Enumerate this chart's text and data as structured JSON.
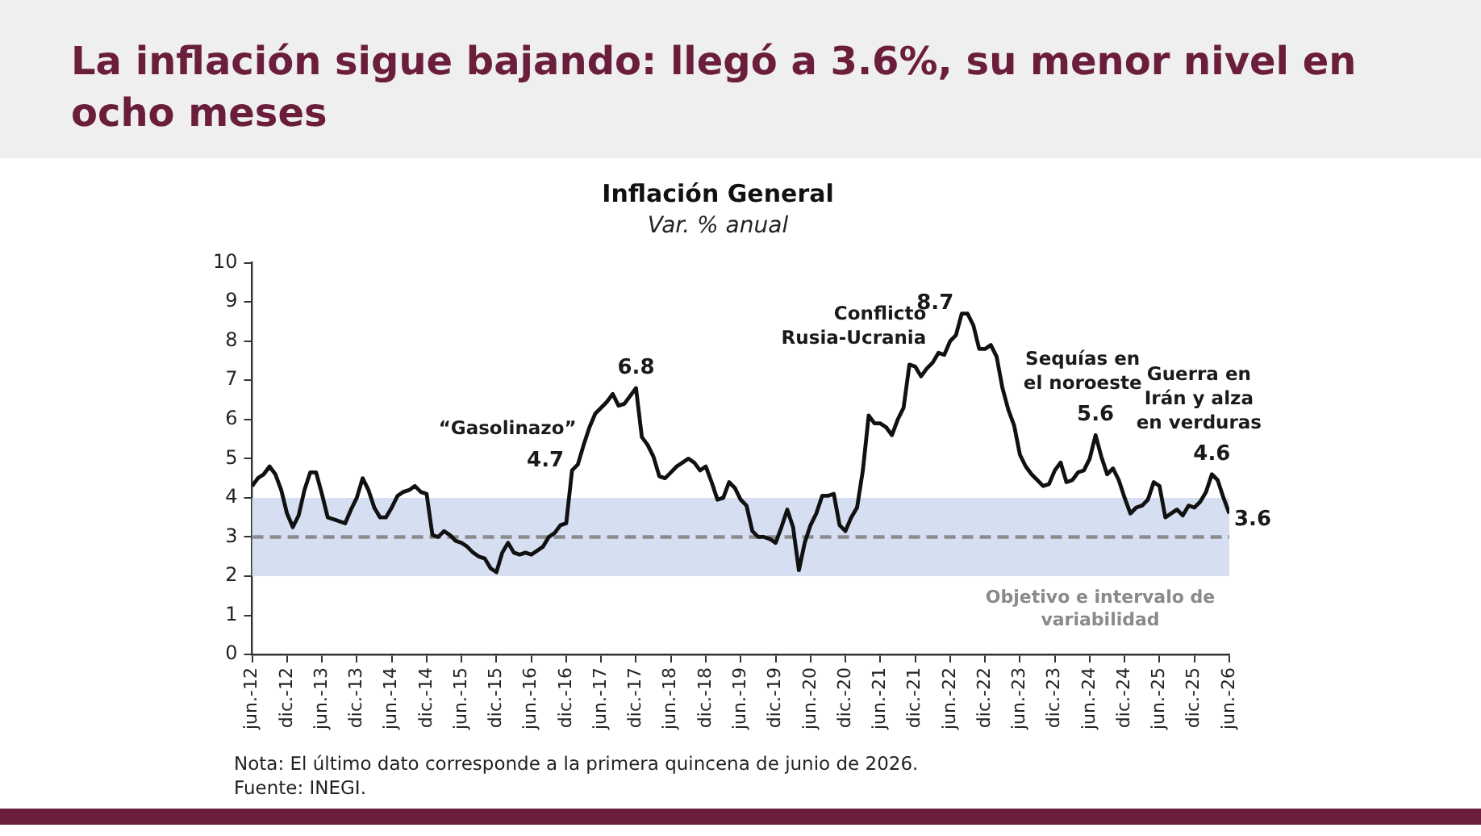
{
  "chart_data": {
    "type": "line",
    "title": "La inflación sigue bajando: llegó a 3.6%, su menor nivel en ocho meses",
    "subtitle": "Inflación General",
    "ylabel": "Var. % anual",
    "annotations": [
      "“Gasolinazo”",
      {
        "text": "4.7",
        "x": "2017-01",
        "y": 4.7
      },
      {
        "text": "6.8",
        "x": "2017-12",
        "y": 6.8
      },
      "Conflicto Rusia-Ucrania",
      {
        "text": "8.7",
        "x": "2022-08",
        "y": 8.7
      },
      "Sequías en el noroeste",
      {
        "text": "5.6",
        "x": "2024-07",
        "y": 5.6
      },
      "Guerra en Irán y alza en verduras",
      {
        "text": "4.6",
        "x": "2026-03",
        "y": 4.6
      },
      {
        "text": "3.6",
        "x": "2026-06",
        "y": 3.6
      },
      "Nota: El último dato corresponde a la primera quincena de junio de 2026.",
      "Fuente: INEGI."
    ],
    "x": [
      "2012-06",
      "2012-07",
      "2012-08",
      "2012-09",
      "2012-10",
      "2012-11",
      "2012-12",
      "2013-01",
      "2013-02",
      "2013-03",
      "2013-04",
      "2013-05",
      "2013-06",
      "2013-07",
      "2013-08",
      "2013-09",
      "2013-10",
      "2013-11",
      "2013-12",
      "2014-01",
      "2014-02",
      "2014-03",
      "2014-04",
      "2014-05",
      "2014-06",
      "2014-07",
      "2014-08",
      "2014-09",
      "2014-10",
      "2014-11",
      "2014-12",
      "2015-01",
      "2015-02",
      "2015-03",
      "2015-04",
      "2015-05",
      "2015-06",
      "2015-07",
      "2015-08",
      "2015-09",
      "2015-10",
      "2015-11",
      "2015-12",
      "2016-01",
      "2016-02",
      "2016-03",
      "2016-04",
      "2016-05",
      "2016-06",
      "2016-07",
      "2016-08",
      "2016-09",
      "2016-10",
      "2016-11",
      "2016-12",
      "2017-01",
      "2017-02",
      "2017-03",
      "2017-04",
      "2017-05",
      "2017-06",
      "2017-07",
      "2017-08",
      "2017-09",
      "2017-10",
      "2017-11",
      "2017-12",
      "2018-01",
      "2018-02",
      "2018-03",
      "2018-04",
      "2018-05",
      "2018-06",
      "2018-07",
      "2018-08",
      "2018-09",
      "2018-10",
      "2018-11",
      "2018-12",
      "2019-01",
      "2019-02",
      "2019-03",
      "2019-04",
      "2019-05",
      "2019-06",
      "2019-07",
      "2019-08",
      "2019-09",
      "2019-10",
      "2019-11",
      "2019-12",
      "2020-01",
      "2020-02",
      "2020-03",
      "2020-04",
      "2020-05",
      "2020-06",
      "2020-07",
      "2020-08",
      "2020-09",
      "2020-10",
      "2020-11",
      "2020-12",
      "2021-01",
      "2021-02",
      "2021-03",
      "2021-04",
      "2021-05",
      "2021-06",
      "2021-07",
      "2021-08",
      "2021-09",
      "2021-10",
      "2021-11",
      "2021-12",
      "2022-01",
      "2022-02",
      "2022-03",
      "2022-04",
      "2022-05",
      "2022-06",
      "2022-07",
      "2022-08",
      "2022-09",
      "2022-10",
      "2022-11",
      "2022-12",
      "2023-01",
      "2023-02",
      "2023-03",
      "2023-04",
      "2023-05",
      "2023-06",
      "2023-07",
      "2023-08",
      "2023-09",
      "2023-10",
      "2023-11",
      "2023-12",
      "2024-01",
      "2024-02",
      "2024-03",
      "2024-04",
      "2024-05",
      "2024-06",
      "2024-07",
      "2024-08",
      "2024-09",
      "2024-10",
      "2024-11",
      "2024-12",
      "2025-01",
      "2025-02",
      "2025-03",
      "2025-04",
      "2025-05",
      "2025-06",
      "2025-07",
      "2025-08",
      "2025-09",
      "2025-10",
      "2025-11",
      "2025-12",
      "2026-01",
      "2026-02",
      "2026-03",
      "2026-04",
      "2026-05",
      "2026-06"
    ],
    "series": [
      {
        "color": "#111111",
        "values": [
          4.3,
          4.5,
          4.6,
          4.8,
          4.6,
          4.2,
          3.6,
          3.25,
          3.55,
          4.2,
          4.65,
          4.65,
          4.1,
          3.5,
          3.45,
          3.4,
          3.35,
          3.7,
          4.0,
          4.5,
          4.2,
          3.75,
          3.5,
          3.5,
          3.75,
          4.05,
          4.15,
          4.2,
          4.3,
          4.15,
          4.1,
          3.05,
          3.0,
          3.15,
          3.05,
          2.9,
          2.85,
          2.75,
          2.6,
          2.5,
          2.45,
          2.2,
          2.1,
          2.6,
          2.85,
          2.6,
          2.55,
          2.6,
          2.55,
          2.65,
          2.75,
          3.0,
          3.1,
          3.3,
          3.35,
          4.7,
          4.85,
          5.35,
          5.8,
          6.15,
          6.3,
          6.45,
          6.65,
          6.35,
          6.4,
          6.6,
          6.8,
          5.55,
          5.35,
          5.05,
          4.55,
          4.5,
          4.65,
          4.8,
          4.9,
          5.0,
          4.9,
          4.7,
          4.8,
          4.4,
          3.95,
          4.0,
          4.4,
          4.25,
          3.95,
          3.8,
          3.15,
          3.0,
          3.0,
          2.95,
          2.85,
          3.25,
          3.7,
          3.25,
          2.15,
          2.85,
          3.3,
          3.6,
          4.05,
          4.05,
          4.1,
          3.3,
          3.15,
          3.5,
          3.75,
          4.7,
          6.1,
          5.9,
          5.9,
          5.8,
          5.6,
          6.0,
          6.3,
          7.4,
          7.35,
          7.1,
          7.3,
          7.45,
          7.7,
          7.65,
          8.0,
          8.15,
          8.7,
          8.7,
          8.4,
          7.8,
          7.8,
          7.9,
          7.6,
          6.8,
          6.25,
          5.85,
          5.1,
          4.8,
          4.6,
          4.45,
          4.3,
          4.35,
          4.7,
          4.9,
          4.4,
          4.45,
          4.65,
          4.7,
          5.0,
          5.6,
          5.05,
          4.6,
          4.75,
          4.45,
          4.0,
          3.6,
          3.75,
          3.8,
          3.95,
          4.4,
          4.3,
          3.5,
          3.6,
          3.7,
          3.55,
          3.8,
          3.75,
          3.9,
          4.15,
          4.6,
          4.45,
          4.0,
          3.6
        ]
      }
    ],
    "xlim": [
      "2012-06",
      "2026-06"
    ],
    "xticks": [
      {
        "value": "2012-06",
        "label": "jun.-12"
      },
      {
        "value": "2012-12",
        "label": "dic.-12"
      },
      {
        "value": "2013-06",
        "label": "jun.-13"
      },
      {
        "value": "2013-12",
        "label": "dic.-13"
      },
      {
        "value": "2014-06",
        "label": "jun.-14"
      },
      {
        "value": "2014-12",
        "label": "dic.-14"
      },
      {
        "value": "2015-06",
        "label": "jun.-15"
      },
      {
        "value": "2015-12",
        "label": "dic.-15"
      },
      {
        "value": "2016-06",
        "label": "jun.-16"
      },
      {
        "value": "2016-12",
        "label": "dic.-16"
      },
      {
        "value": "2017-06",
        "label": "jun.-17"
      },
      {
        "value": "2017-12",
        "label": "dic.-17"
      },
      {
        "value": "2018-06",
        "label": "jun.-18"
      },
      {
        "value": "2018-12",
        "label": "dic.-18"
      },
      {
        "value": "2019-06",
        "label": "jun.-19"
      },
      {
        "value": "2019-12",
        "label": "dic.-19"
      },
      {
        "value": "2020-06",
        "label": "jun.-20"
      },
      {
        "value": "2020-12",
        "label": "dic.-20"
      },
      {
        "value": "2021-06",
        "label": "jun.-21"
      },
      {
        "value": "2021-12",
        "label": "dic.-21"
      },
      {
        "value": "2022-06",
        "label": "jun.-22"
      },
      {
        "value": "2022-12",
        "label": "dic.-22"
      },
      {
        "value": "2023-06",
        "label": "jun.-23"
      },
      {
        "value": "2023-12",
        "label": "dic.-23"
      },
      {
        "value": "2024-06",
        "label": "jun.-24"
      },
      {
        "value": "2024-12",
        "label": "dic.-24"
      },
      {
        "value": "2025-06",
        "label": "jun.-25"
      },
      {
        "value": "2025-12",
        "label": "dic.-25"
      },
      {
        "value": "2026-06",
        "label": "jun.-26"
      }
    ],
    "ylim": [
      0,
      10
    ],
    "yticks": [
      0,
      1,
      2,
      3,
      4,
      5,
      6,
      7,
      8,
      9,
      10
    ],
    "ref_lines": [
      {
        "axis": "y",
        "value": 3,
        "color": "#8c8c8c",
        "line_style": "dashed"
      }
    ],
    "bands": [
      {
        "axis": "y",
        "from": 2,
        "to": 4,
        "label": "Objetivo e intervalo de variabilidad",
        "color": "#d5dff1"
      }
    ]
  }
}
